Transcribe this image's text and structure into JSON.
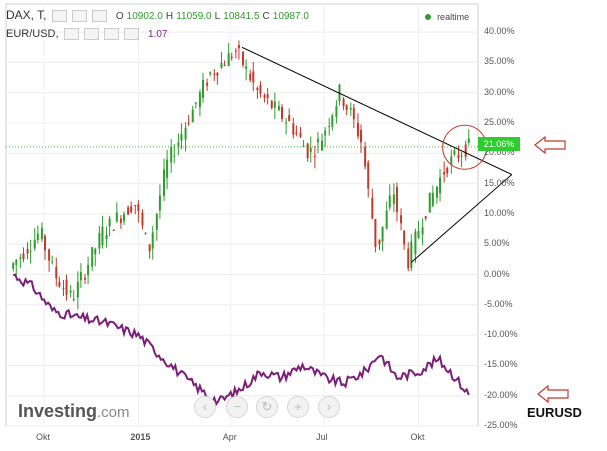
{
  "header": {
    "symbol": "DAX, T,",
    "open_label": "O",
    "open_value": "10902.0",
    "high_label": "H",
    "high_value": "11059.0",
    "low_label": "L",
    "low_value": "10841.5",
    "close_label": "C",
    "close_value": "10987.0",
    "realtime_label": "realtime",
    "overlay_symbol": "EUR/USD,",
    "overlay_value": "1.07"
  },
  "colors": {
    "up": "#2e9c2e",
    "down": "#c0392b",
    "overlay": "#7b1e7a",
    "badge": "#2ecc2e",
    "annotation": "#c0392b",
    "trend": "#000000"
  },
  "chart_data": {
    "type": "line",
    "title": "",
    "y_axis": {
      "unit": "%",
      "range": [
        -25,
        42
      ],
      "tick_labels": [
        "40.00%",
        "35.00%",
        "30.00%",
        "25.00%",
        "20.00%",
        "15.00%",
        "10.00%",
        "5.00%",
        "0.00%",
        "-5.00%",
        "-10.00%",
        "-15.00%",
        "-20.00%",
        "-25.00%"
      ]
    },
    "x_axis": {
      "tick_labels": [
        "Okt",
        "2015",
        "Apr",
        "Jul",
        "Okt"
      ]
    },
    "grid": true,
    "current_value_label": "21.06%",
    "series": [
      {
        "name": "DAX",
        "style": "candlestick",
        "x": [
          "2014-09-01",
          "2014-10-01",
          "2014-10-15",
          "2014-11-01",
          "2014-12-01",
          "2015-01-01",
          "2015-01-15",
          "2015-02-01",
          "2015-03-01",
          "2015-03-15",
          "2015-04-10",
          "2015-05-01",
          "2015-06-01",
          "2015-06-20",
          "2015-07-01",
          "2015-07-20",
          "2015-08-01",
          "2015-08-10",
          "2015-08-25",
          "2015-09-10",
          "2015-09-24",
          "2015-10-10",
          "2015-11-01",
          "2015-11-20"
        ],
        "values": [
          1,
          7,
          0,
          -4,
          7,
          12,
          4,
          18,
          28,
          33,
          37,
          30,
          25,
          20,
          22,
          30,
          26,
          22,
          4,
          14,
          2,
          10,
          18,
          21
        ]
      },
      {
        "name": "EUR/USD",
        "style": "line",
        "x": [
          "2014-09-01",
          "2014-09-20",
          "2014-10-10",
          "2014-11-01",
          "2014-12-01",
          "2015-01-01",
          "2015-01-20",
          "2015-02-15",
          "2015-03-10",
          "2015-03-20",
          "2015-04-10",
          "2015-05-01",
          "2015-05-20",
          "2015-06-10",
          "2015-07-01",
          "2015-07-20",
          "2015-08-10",
          "2015-08-24",
          "2015-09-10",
          "2015-10-01",
          "2015-10-20",
          "2015-11-01",
          "2015-11-20"
        ],
        "values": [
          0,
          -2,
          -6,
          -7,
          -8,
          -10,
          -13,
          -17,
          -20,
          -21,
          -19,
          -16,
          -17,
          -15,
          -17,
          -18,
          -16,
          -13,
          -17,
          -16,
          -14,
          -16,
          -20
        ]
      }
    ],
    "annotations": {
      "trend_lines": [
        {
          "from": {
            "x": "2015-04-12",
            "y": 37.5
          },
          "to": {
            "x": "2015-12-31",
            "y": 16.5
          }
        },
        {
          "from": {
            "x": "2015-09-24",
            "y": 2.0
          },
          "to": {
            "x": "2015-12-31",
            "y": 16.5
          }
        }
      ],
      "circle_center": {
        "x": "2015-11-15",
        "y": 21.0
      },
      "arrow_labels": [
        "EURUSD"
      ]
    }
  }
}
